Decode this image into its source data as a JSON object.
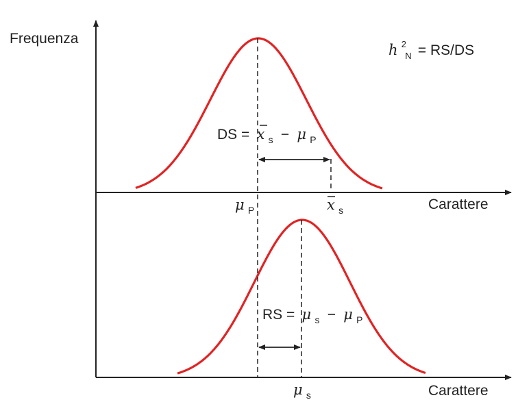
{
  "y_axis_label": "Frequenza",
  "x_axis_label_top": "Carattere",
  "x_axis_label_bottom": "Carattere",
  "formula": {
    "h_symbol": "h",
    "h_superscript": "2",
    "h_subscript": "N",
    "rhs": "= RS/DS"
  },
  "ds_label": {
    "prefix": "DS =",
    "xbar": "x",
    "xbar_sub": "s",
    "minus": "−",
    "mu": "μ",
    "mu_sub": "P"
  },
  "rs_label": {
    "prefix": "RS =",
    "mu1": "μ",
    "mu1_sub": "s",
    "minus": "−",
    "mu2": "μ",
    "mu2_sub": "P"
  },
  "tick_mu_p": {
    "mu": "μ",
    "sub": "P"
  },
  "tick_xbar_s": {
    "x": "x",
    "sub": "s"
  },
  "tick_mu_s": {
    "mu": "μ",
    "sub": "s"
  },
  "colors": {
    "curve": "#e02424",
    "axis": "#222222",
    "text": "#222222"
  }
}
